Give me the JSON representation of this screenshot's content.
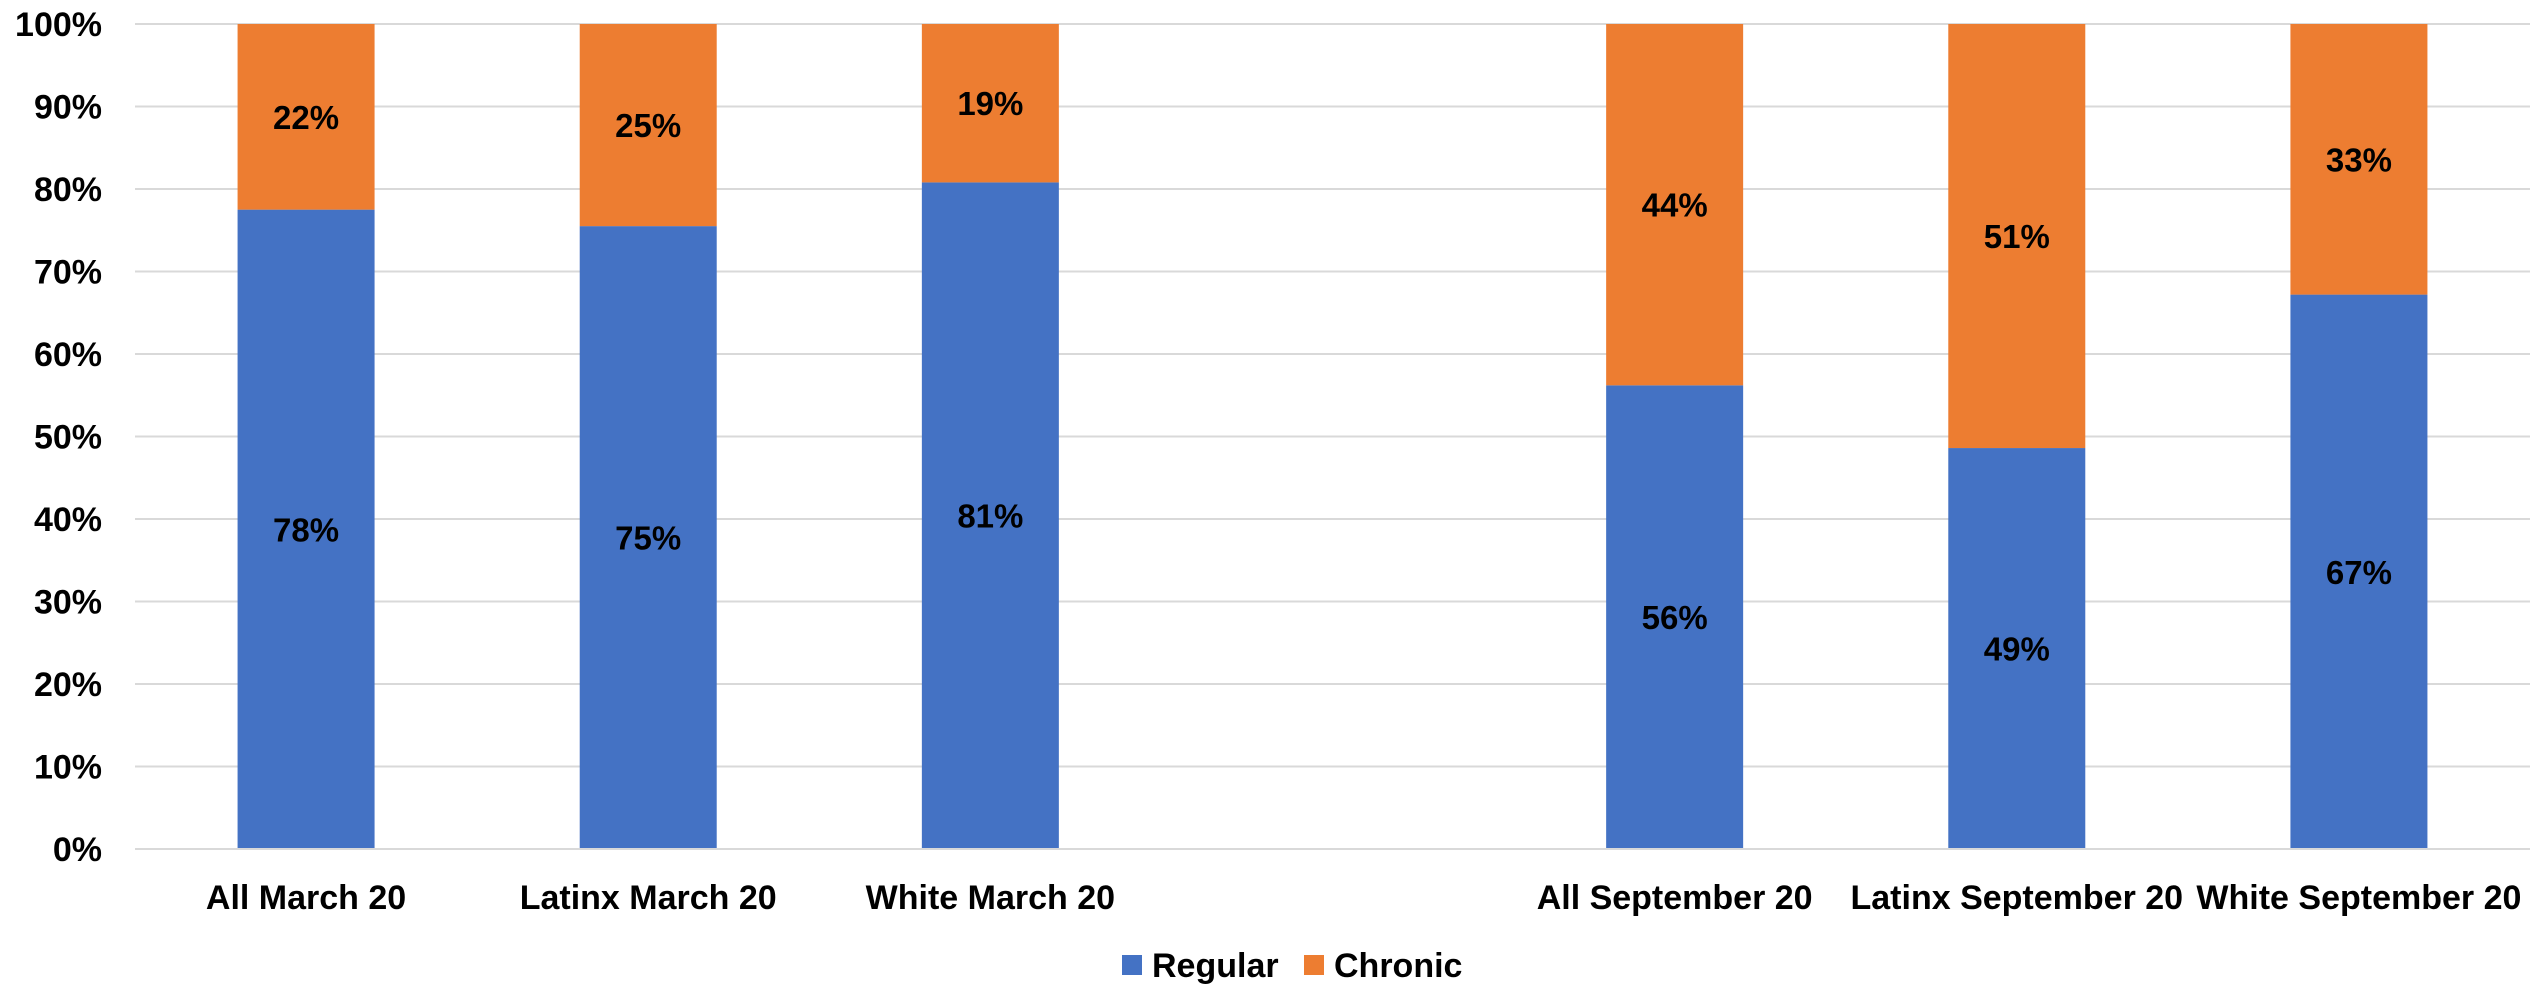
{
  "chart_data": {
    "type": "bar",
    "stacked": true,
    "categories": [
      "All March 20",
      "Latinx March 20",
      "White March 20",
      "",
      "All September 20",
      "Latinx September 20",
      "White September 20"
    ],
    "series": [
      {
        "name": "Regular",
        "color": "#4472C4",
        "values": [
          78,
          75,
          81,
          null,
          56,
          49,
          67
        ],
        "labels": [
          "78%",
          "75%",
          "81%",
          "",
          "56%",
          "49%",
          "67%"
        ]
      },
      {
        "name": "Chronic",
        "color": "#ED7D31",
        "values": [
          22,
          25,
          19,
          null,
          44,
          51,
          33
        ],
        "labels": [
          "22%",
          "25%",
          "19%",
          "",
          "44%",
          "51%",
          "33%"
        ]
      }
    ],
    "bar_heights_pct": {
      "regular": [
        77.5,
        75.5,
        80.8,
        null,
        56.2,
        48.6,
        67.2
      ]
    },
    "ylim": [
      0,
      100
    ],
    "yticks": [
      "0%",
      "10%",
      "20%",
      "30%",
      "40%",
      "50%",
      "60%",
      "70%",
      "80%",
      "90%",
      "100%"
    ],
    "grid": true,
    "legend": {
      "position": "bottom",
      "entries": [
        "Regular",
        "Chronic"
      ]
    }
  }
}
